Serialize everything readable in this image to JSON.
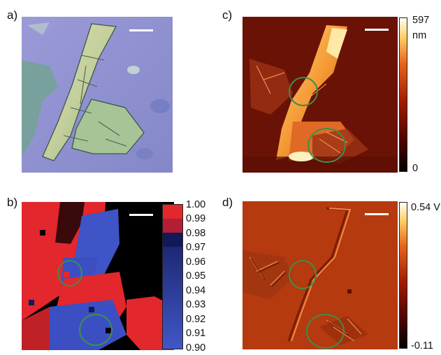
{
  "panels": {
    "a": {
      "label": "a)"
    },
    "b": {
      "label": "b)"
    },
    "c": {
      "label": "c)"
    },
    "d": {
      "label": "d)"
    }
  },
  "colorbar_b": {
    "ticks": [
      "1.00",
      "0.99",
      "0.98",
      "0.97",
      "0.96",
      "0.95",
      "0.94",
      "0.93",
      "0.92",
      "0.91",
      "0.90"
    ],
    "range": [
      0.9,
      1.0
    ],
    "colors": {
      "high": "#e8262a",
      "low": "#3f52c4",
      "mid": "#12185a"
    }
  },
  "colorbar_c": {
    "max_label": "597",
    "unit_label": "nm",
    "min_label": "0",
    "range_nm": [
      0,
      597
    ]
  },
  "colorbar_d": {
    "max_label": "0.54 V",
    "min_label": "-0.11",
    "range_v": [
      -0.11,
      0.54
    ]
  },
  "colors": {
    "optical_background": "#8f91cf",
    "afm_dark": "#6b1206",
    "afm_bright": "#ffd066",
    "highlight_circle": "#3c8f4a",
    "scalebar": "#ffffff"
  }
}
